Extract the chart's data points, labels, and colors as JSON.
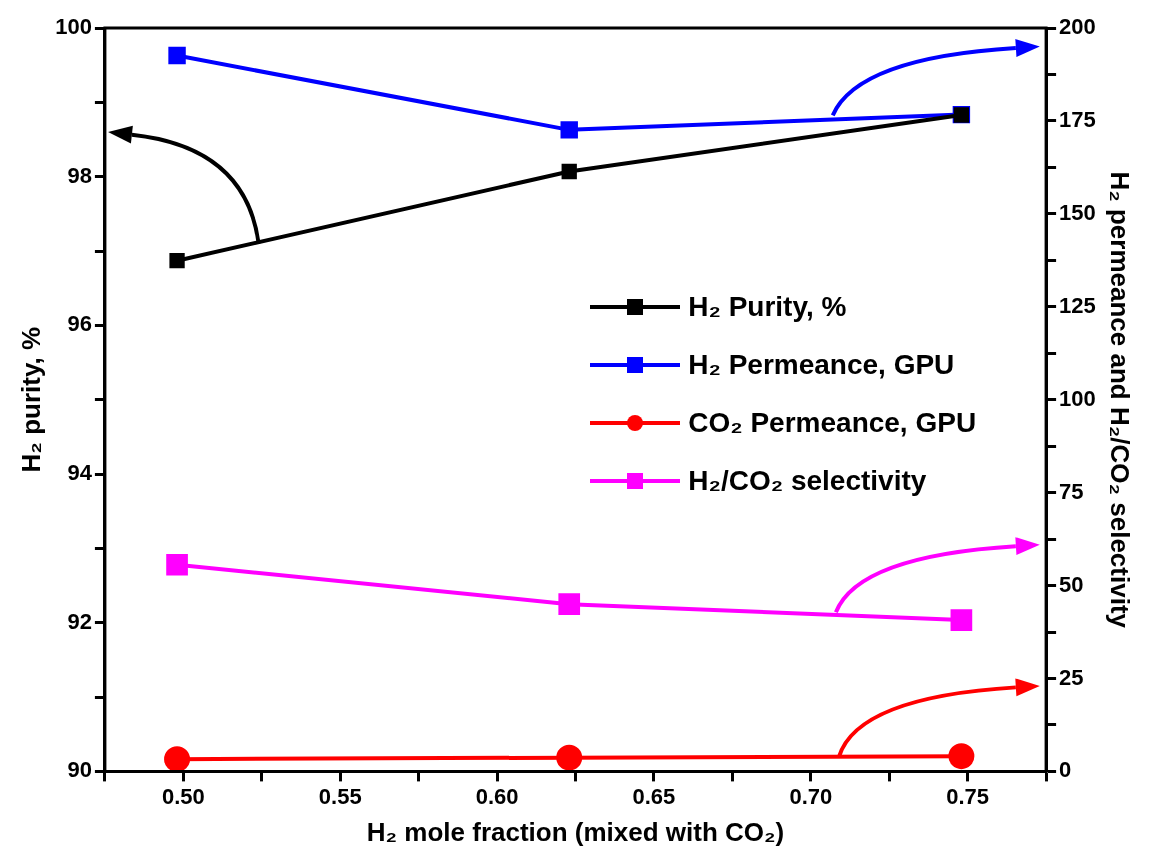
{
  "chart_data": {
    "type": "line",
    "xlabel": "H₂ mole fraction (mixed with CO₂)",
    "ylabel": "H₂ purity, %",
    "y2label": "H₂ permeance and H₂/CO₂ selectivity",
    "x": [
      0.498,
      0.623,
      0.748
    ],
    "xlim": [
      0.475,
      0.775
    ],
    "xticks": [
      {
        "value": 0.475,
        "label": null
      },
      {
        "value": 0.5,
        "label": "0.50"
      },
      {
        "value": 0.525,
        "label": null
      },
      {
        "value": 0.55,
        "label": "0.55"
      },
      {
        "value": 0.575,
        "label": null
      },
      {
        "value": 0.6,
        "label": "0.60"
      },
      {
        "value": 0.625,
        "label": null
      },
      {
        "value": 0.65,
        "label": "0.65"
      },
      {
        "value": 0.675,
        "label": null
      },
      {
        "value": 0.7,
        "label": "0.70"
      },
      {
        "value": 0.725,
        "label": null
      },
      {
        "value": 0.75,
        "label": "0.75"
      },
      {
        "value": 0.775,
        "label": null
      }
    ],
    "ylim": [
      90,
      100
    ],
    "yticks": [
      90,
      {
        "value": 91,
        "label": null
      },
      92,
      {
        "value": 93,
        "label": null
      },
      94,
      {
        "value": 95,
        "label": null
      },
      96,
      {
        "value": 97,
        "label": null
      },
      98,
      {
        "value": 99,
        "label": null
      },
      100
    ],
    "y2lim": [
      0,
      200
    ],
    "y2ticks": [
      0,
      {
        "value": 12.5,
        "label": null
      },
      25,
      {
        "value": 37.5,
        "label": null
      },
      50,
      {
        "value": 62.5,
        "label": null
      },
      75,
      {
        "value": 87.5,
        "label": null
      },
      100,
      {
        "value": 112.5,
        "label": null
      },
      125,
      {
        "value": 137.5,
        "label": null
      },
      150,
      {
        "value": 162.5,
        "label": null
      },
      175,
      {
        "value": 187.5,
        "label": null
      },
      200
    ],
    "legend": "right",
    "line_style": "solid",
    "series": [
      {
        "name": "H₂ Purity, %",
        "color": "#000000",
        "values": [
          96.87,
          98.07,
          98.83
        ],
        "marker": "square"
      },
      {
        "name": "H₂ Permeance, GPU",
        "color": "#0000ff",
        "values": [
          192.6,
          172.6,
          176.7
        ],
        "axis": "y2",
        "marker": "square"
      },
      {
        "name": "CO₂ Permeance, GPU",
        "color": "#ff0000",
        "values": [
          3.3,
          3.7,
          4.1
        ],
        "axis": "y2",
        "marker": "circle"
      },
      {
        "name": "H₂/CO₂ selectivity",
        "color": "#ff00ff",
        "values": [
          55.6,
          45.0,
          40.7
        ],
        "axis": "y2",
        "marker": "square"
      }
    ]
  }
}
